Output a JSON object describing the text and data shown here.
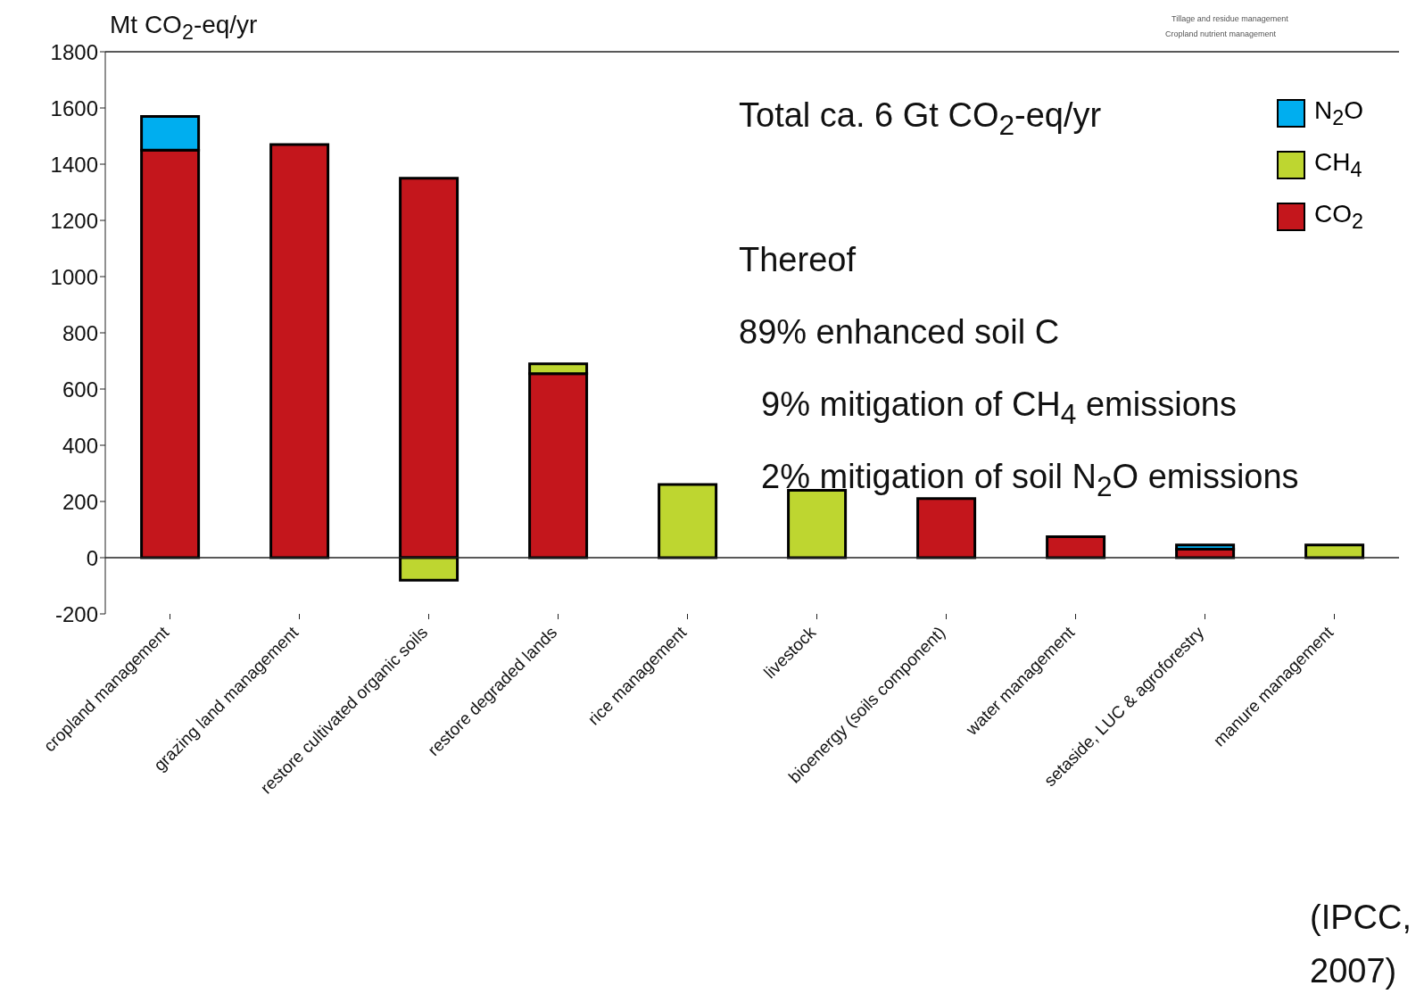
{
  "chart_data": {
    "type": "bar",
    "stacked": true,
    "ylabel": "Mt CO$_{2}$-eq/yr",
    "categories": [
      "cropland management",
      "grazing land management",
      "restore cultivated organic soils",
      "restore degraded lands",
      "rice management",
      "livestock",
      "bioenergy (soils component)",
      "water management",
      "setaside, LUC & agroforestry",
      "manure management"
    ],
    "series": [
      {
        "name": "CO$_{2}$",
        "color": "#c4161c",
        "values": [
          1450,
          1470,
          1350,
          655,
          0,
          0,
          210,
          75,
          30,
          0
        ]
      },
      {
        "name": "CH$_{4}$",
        "color": "#bed630",
        "values": [
          0,
          0,
          -80,
          35,
          260,
          240,
          0,
          0,
          0,
          45
        ]
      },
      {
        "name": "N$_{2}$O",
        "color": "#00aeef",
        "values": [
          120,
          0,
          0,
          0,
          0,
          0,
          0,
          0,
          15,
          0
        ]
      }
    ],
    "ylim": [
      -200,
      1800
    ],
    "yticks": [
      -200,
      0,
      200,
      400,
      600,
      800,
      1000,
      1200,
      1400,
      1600,
      1800
    ],
    "legend": "top right",
    "annotations": [
      "Total ca. 6 Gt CO$_{2}$-eq/yr",
      "Thereof",
      "89% enhanced soil C",
      "9% mitigation of CH$_{4}$ emissions",
      "2% mitigation of soil N$_{2}$O emissions",
      "(IPCC, 2007)",
      "Tillage and residue management",
      "Cropland nutrient management"
    ]
  }
}
